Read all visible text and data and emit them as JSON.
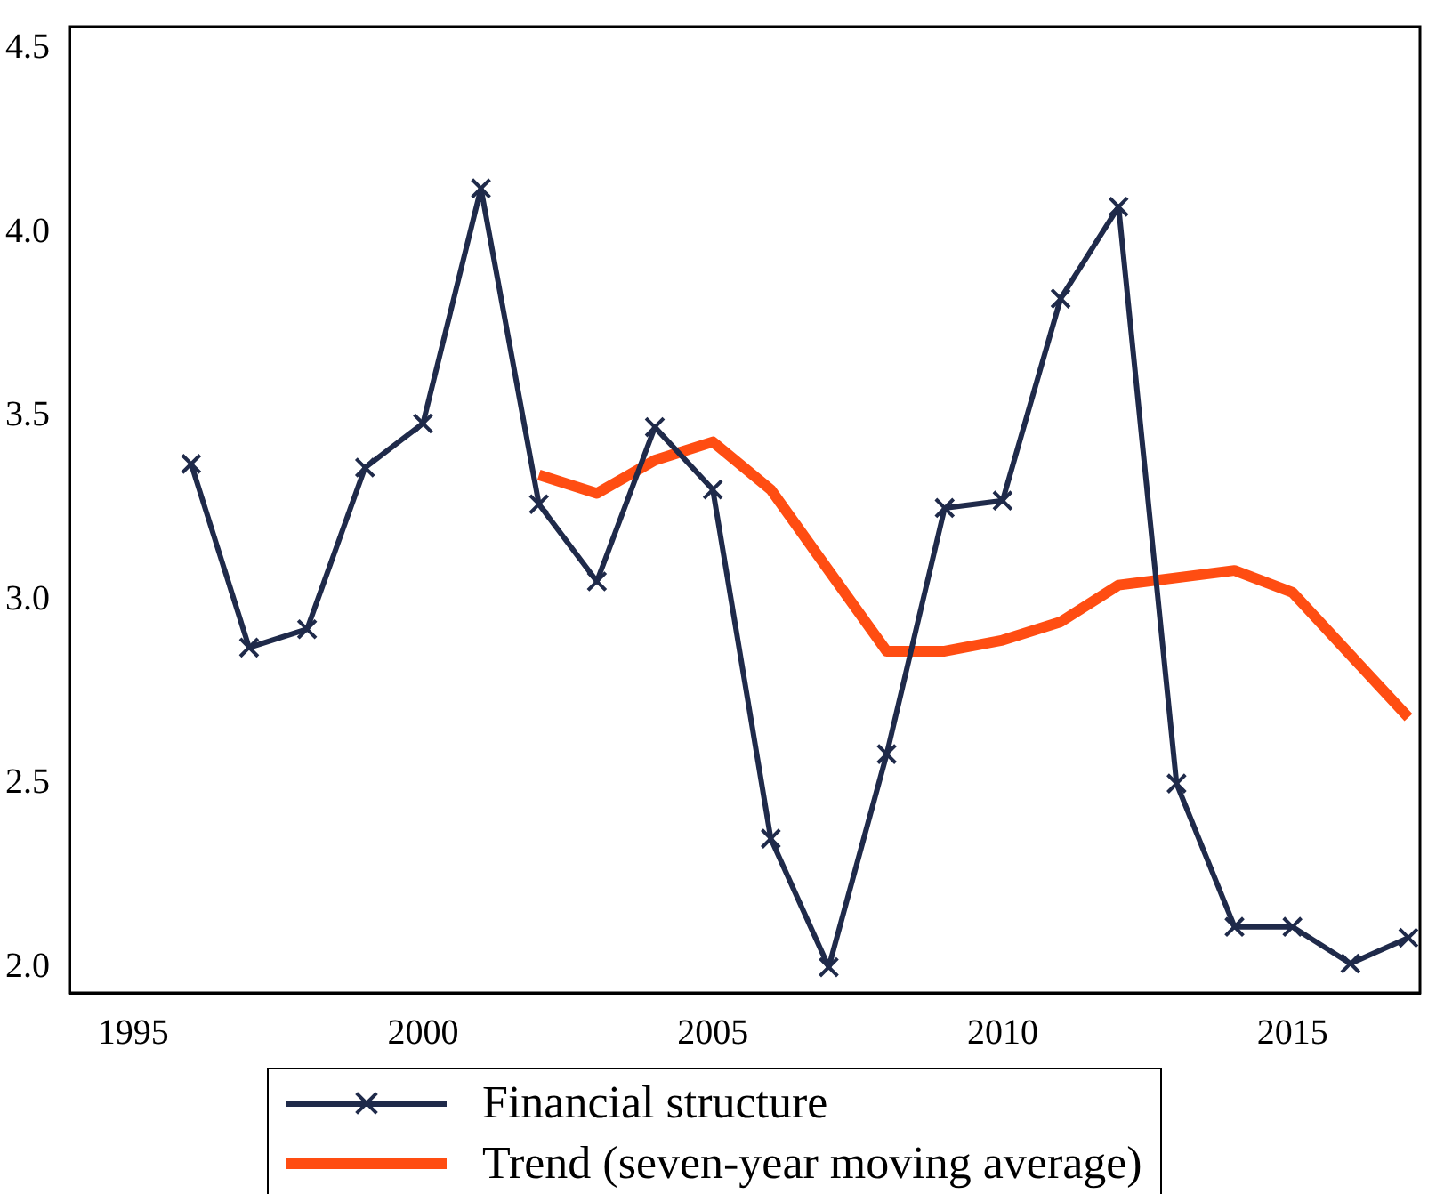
{
  "chart_data": {
    "type": "line",
    "legend": "bottom",
    "marker": "cross",
    "grid": false,
    "x": [
      1996,
      1997,
      1998,
      1999,
      2000,
      2001,
      2002,
      2003,
      2004,
      2005,
      2006,
      2007,
      2008,
      2009,
      2010,
      2011,
      2012,
      2013,
      2014,
      2015,
      2016,
      2017
    ],
    "xlim": [
      1993.9,
      2017.2
    ],
    "xticks": [
      1995,
      2000,
      2005,
      2010,
      2015
    ],
    "ylim": [
      1.93,
      4.56
    ],
    "yticks": [
      {
        "value": 2,
        "label": "2.0"
      },
      {
        "value": 2.5,
        "label": "2.5"
      },
      {
        "value": 3,
        "label": "3.0"
      },
      {
        "value": 3.5,
        "label": "3.5"
      },
      {
        "value": 4,
        "label": "4.0"
      },
      {
        "value": 4.5,
        "label": "4.5"
      }
    ],
    "series": [
      {
        "name": "Financial structure",
        "color": "#1f2a4a",
        "values": [
          3.37,
          2.87,
          2.92,
          3.36,
          3.48,
          4.12,
          3.26,
          3.05,
          3.47,
          3.3,
          2.35,
          2.0,
          2.58,
          3.25,
          3.27,
          3.82,
          4.07,
          2.5,
          2.11,
          2.11,
          2.01,
          2.08
        ]
      },
      {
        "name": "Trend (seven-year moving average)",
        "color": "#ff4d12",
        "marker": "none",
        "x": [
          2002,
          2003,
          2004,
          2005,
          2006,
          2007,
          2008,
          2009,
          2010,
          2011,
          2012,
          2013,
          2014,
          2015,
          2016,
          2017
        ],
        "values": [
          3.34,
          3.29,
          3.38,
          3.43,
          3.3,
          3.08,
          2.86,
          2.86,
          2.89,
          2.94,
          3.04,
          3.06,
          3.08,
          3.02,
          2.85,
          2.68
        ]
      }
    ]
  }
}
